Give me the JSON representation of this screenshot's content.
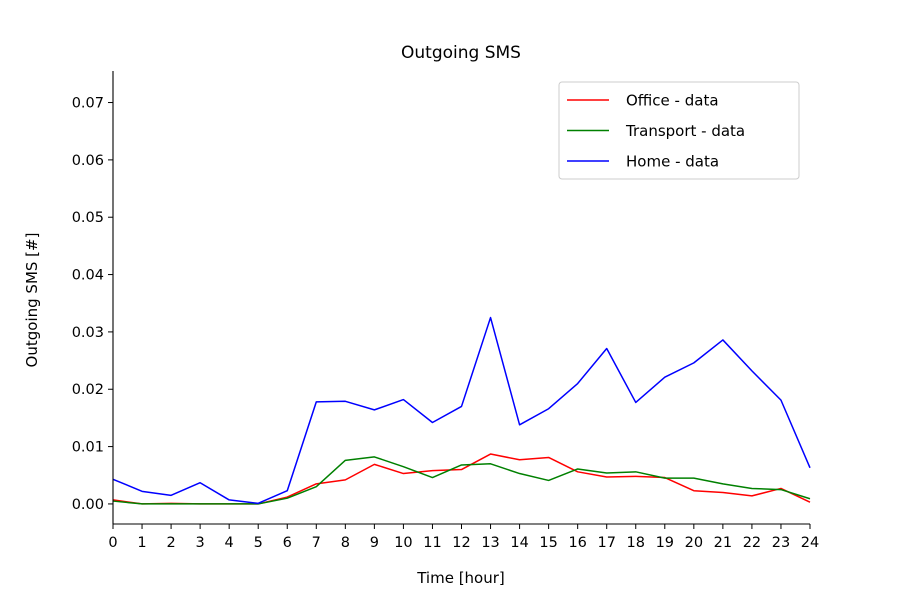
{
  "chart_data": {
    "type": "line",
    "title": "Outgoing SMS",
    "xlabel": "Time [hour]",
    "ylabel": "Outgoing SMS [#]",
    "x": [
      0,
      1,
      2,
      3,
      4,
      5,
      6,
      7,
      8,
      9,
      10,
      11,
      12,
      13,
      14,
      15,
      16,
      17,
      18,
      19,
      20,
      21,
      22,
      23,
      24
    ],
    "xlim": [
      0,
      24
    ],
    "ylim": [
      -0.0035,
      0.0755
    ],
    "yticks": [
      0.0,
      0.01,
      0.02,
      0.03,
      0.04,
      0.05,
      0.06,
      0.07
    ],
    "ytick_labels": [
      "0.00",
      "0.01",
      "0.02",
      "0.03",
      "0.04",
      "0.05",
      "0.06",
      "0.07"
    ],
    "xtick_labels": [
      "0",
      "1",
      "2",
      "3",
      "4",
      "5",
      "6",
      "7",
      "8",
      "9",
      "10",
      "11",
      "12",
      "13",
      "14",
      "15",
      "16",
      "17",
      "18",
      "19",
      "20",
      "21",
      "22",
      "23",
      "24"
    ],
    "grid": false,
    "legend_position": "top-right",
    "series": [
      {
        "name": "Office - data",
        "color": "#ff0000",
        "values": [
          0.0007,
          0.0,
          0.0001,
          0.0,
          0.0,
          0.0,
          0.0012,
          0.0035,
          0.0042,
          0.0069,
          0.0053,
          0.0058,
          0.006,
          0.0087,
          0.0077,
          0.0081,
          0.0056,
          0.0047,
          0.0048,
          0.0046,
          0.0023,
          0.002,
          0.0014,
          0.0027,
          0.0003
        ]
      },
      {
        "name": "Transport - data",
        "color": "#008000",
        "values": [
          0.0005,
          0.0,
          0.0,
          0.0,
          0.0,
          0.0,
          0.001,
          0.003,
          0.0076,
          0.0082,
          0.0065,
          0.0046,
          0.0068,
          0.007,
          0.0053,
          0.0041,
          0.0061,
          0.0054,
          0.0056,
          0.0045,
          0.0045,
          0.0035,
          0.0027,
          0.0025,
          0.0009
        ]
      },
      {
        "name": "Home - data",
        "color": "#0000ff",
        "values": [
          0.0043,
          0.0022,
          0.0015,
          0.0037,
          0.0007,
          0.0001,
          0.0023,
          0.0178,
          0.0179,
          0.0164,
          0.0182,
          0.0142,
          0.017,
          0.0325,
          0.0138,
          0.0166,
          0.021,
          0.0271,
          0.0177,
          0.0221,
          0.0246,
          0.0286,
          0.0232,
          0.0181,
          0.0063
        ]
      }
    ]
  }
}
